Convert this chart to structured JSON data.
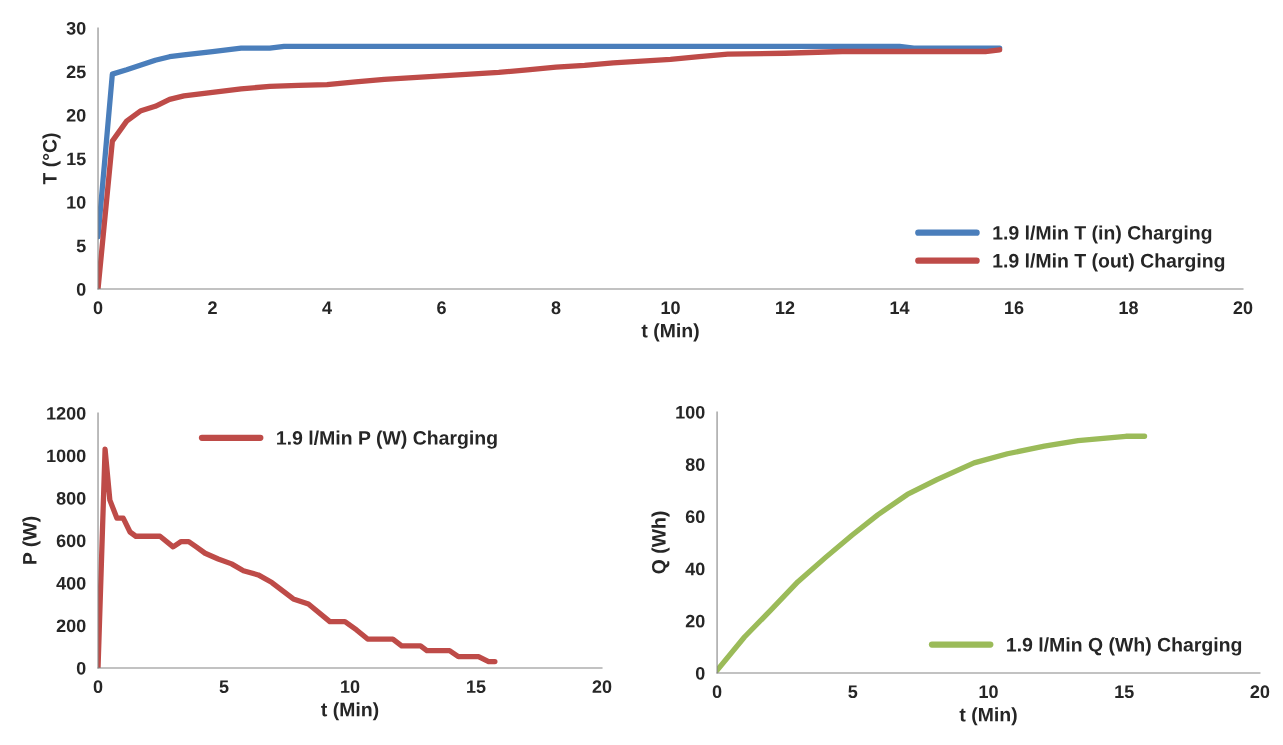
{
  "chart_data": [
    {
      "type": "line",
      "xlabel": "t (Min)",
      "ylabel": "T (°C)",
      "xlim": [
        0,
        20
      ],
      "xticks": [
        0,
        2,
        4,
        6,
        8,
        10,
        12,
        14,
        16,
        18,
        20
      ],
      "ylim": [
        0,
        30
      ],
      "yticks": [
        0,
        5,
        10,
        15,
        20,
        25,
        30
      ],
      "grid": false,
      "legend": "lower right",
      "marker": "none",
      "line_style": "solid",
      "series": [
        {
          "name": "1.9 l/Min T (in) Charging",
          "color": "#4a7ebb",
          "x": [
            0,
            0.25,
            0.5,
            1,
            1.25,
            1.5,
            2,
            2.5,
            3,
            3.25,
            14,
            14.25,
            15.75
          ],
          "values": [
            6,
            24.7,
            25.2,
            26.3,
            26.7,
            26.9,
            27.3,
            27.7,
            27.7,
            27.9,
            27.9,
            27.7,
            27.7
          ]
        },
        {
          "name": "1.9 l/Min T (out) Charging",
          "color": "#be4b48",
          "x": [
            0,
            0.25,
            0.5,
            0.75,
            1,
            1.25,
            1.5,
            2,
            2.5,
            3,
            3.5,
            4,
            4.5,
            5,
            5.5,
            6,
            6.5,
            7,
            7.5,
            8,
            8.5,
            9,
            9.5,
            10,
            10.5,
            11,
            12,
            13,
            15.5,
            15.75
          ],
          "values": [
            0,
            17,
            19.3,
            20.5,
            21,
            21.8,
            22.2,
            22.6,
            23,
            23.3,
            23.4,
            23.5,
            23.8,
            24.1,
            24.3,
            24.5,
            24.7,
            24.9,
            25.2,
            25.5,
            25.7,
            26,
            26.2,
            26.4,
            26.7,
            27,
            27.1,
            27.3,
            27.3,
            27.5
          ]
        }
      ]
    },
    {
      "type": "line",
      "xlabel": "t (Min)",
      "ylabel": "P (W)",
      "xlim": [
        0,
        20
      ],
      "xticks": [
        0,
        5,
        10,
        15,
        20
      ],
      "ylim": [
        0,
        1200
      ],
      "yticks": [
        0,
        200,
        400,
        600,
        800,
        1000,
        1200
      ],
      "grid": false,
      "legend": "upper center",
      "marker": "none",
      "line_style": "solid",
      "series": [
        {
          "name": "1.9 l/Min P (W) Charging",
          "color": "#be4b48",
          "x": [
            0,
            0.28,
            0.47,
            0.75,
            1.0,
            1.27,
            1.5,
            2.46,
            2.98,
            3.3,
            3.6,
            3.9,
            4.25,
            4.77,
            5.3,
            5.77,
            6.36,
            6.9,
            7.75,
            8.35,
            9.2,
            9.8,
            10.26,
            10.7,
            11.7,
            12.05,
            12.8,
            13.05,
            13.95,
            14.3,
            15.1,
            15.5,
            15.75
          ],
          "values": [
            0,
            1030,
            790,
            705,
            705,
            640,
            620,
            620,
            570,
            595,
            595,
            570,
            540,
            513,
            490,
            458,
            438,
            402,
            325,
            301,
            218,
            218,
            179,
            136,
            136,
            104,
            104,
            82,
            82,
            53,
            53,
            30,
            30
          ]
        }
      ]
    },
    {
      "type": "line",
      "xlabel": "t (Min)",
      "ylabel": "Q (Wh)",
      "xlim": [
        0,
        20
      ],
      "xticks": [
        0,
        5,
        10,
        15,
        20
      ],
      "ylim": [
        0,
        100
      ],
      "yticks": [
        0,
        20,
        40,
        60,
        80,
        100
      ],
      "grid": false,
      "legend": "lower right",
      "marker": "none",
      "line_style": "solid",
      "series": [
        {
          "name": "1.9 l/Min Q (Wh) Charging",
          "color": "#9bbb59",
          "x": [
            0,
            1.01,
            1.97,
            2.98,
            4.0,
            4.97,
            5.92,
            7.01,
            8.1,
            9.47,
            10.7,
            12.06,
            13.3,
            15.06,
            15.75
          ],
          "values": [
            1,
            13.8,
            24,
            35,
            44.3,
            52.8,
            60.6,
            68.4,
            74.1,
            80.5,
            84,
            86.9,
            89,
            90.7,
            90.7
          ]
        }
      ]
    }
  ]
}
